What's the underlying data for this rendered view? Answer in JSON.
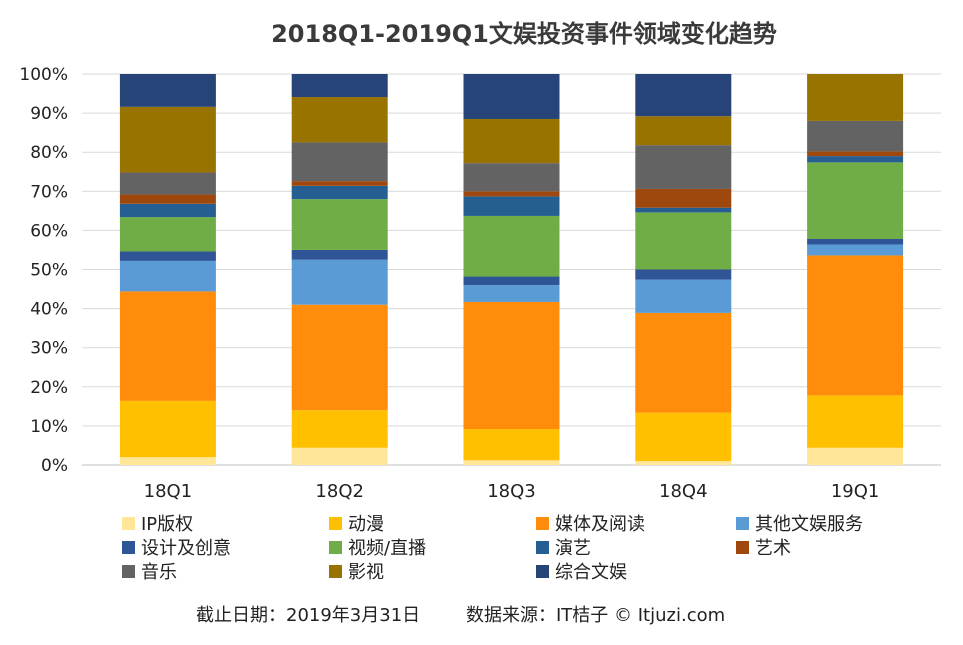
{
  "chart_data": {
    "type": "bar",
    "stacked": true,
    "percent": true,
    "title": "2018Q1-2019Q1文娱投资事件领域变化趋势",
    "categories": [
      "18Q1",
      "18Q2",
      "18Q3",
      "18Q4",
      "19Q1"
    ],
    "ylim": [
      0,
      100
    ],
    "yticks": [
      "0%",
      "10%",
      "20%",
      "30%",
      "40%",
      "50%",
      "60%",
      "70%",
      "80%",
      "90%",
      "100%"
    ],
    "grid": true,
    "legend_position": "bottom",
    "series": [
      {
        "name": "IP版权",
        "color": "#FFE699",
        "values": [
          2,
          4.4,
          1.2,
          1,
          4.4
        ]
      },
      {
        "name": "动漫",
        "color": "#FFC000",
        "values": [
          14.4,
          9.6,
          8,
          12.4,
          13.4
        ]
      },
      {
        "name": "媒体及阅读",
        "color": "#FF8C0A",
        "values": [
          28,
          27,
          32.5,
          25.5,
          35.8
        ]
      },
      {
        "name": "其他文娱服务",
        "color": "#5B9BD5",
        "values": [
          7.8,
          11.5,
          4.3,
          8.5,
          2.8
        ]
      },
      {
        "name": "设计及创意",
        "color": "#2F5597",
        "values": [
          2.4,
          2.5,
          2.2,
          2.6,
          1.4
        ]
      },
      {
        "name": "视频/直播",
        "color": "#70AD47",
        "values": [
          8.8,
          13,
          15.5,
          14.6,
          19.6
        ]
      },
      {
        "name": "演艺",
        "color": "#255E91",
        "values": [
          3.4,
          3.4,
          5,
          1.2,
          1.6
        ]
      },
      {
        "name": "艺术",
        "color": "#9E480E",
        "values": [
          2.4,
          1.2,
          1.3,
          4.8,
          1.2
        ]
      },
      {
        "name": "音乐",
        "color": "#636363",
        "values": [
          5.6,
          9.9,
          7.2,
          11.2,
          7.8
        ]
      },
      {
        "name": "影视",
        "color": "#997300",
        "values": [
          16.8,
          11.6,
          11.3,
          7.4,
          12
        ]
      },
      {
        "name": "综合文娱",
        "color": "#264478",
        "values": [
          8.4,
          5.9,
          11.5,
          10.8,
          0
        ]
      }
    ],
    "footer": {
      "date": "截止日期：2019年3月31日",
      "source": "数据来源：IT桔子 © Itjuzi.com"
    }
  }
}
